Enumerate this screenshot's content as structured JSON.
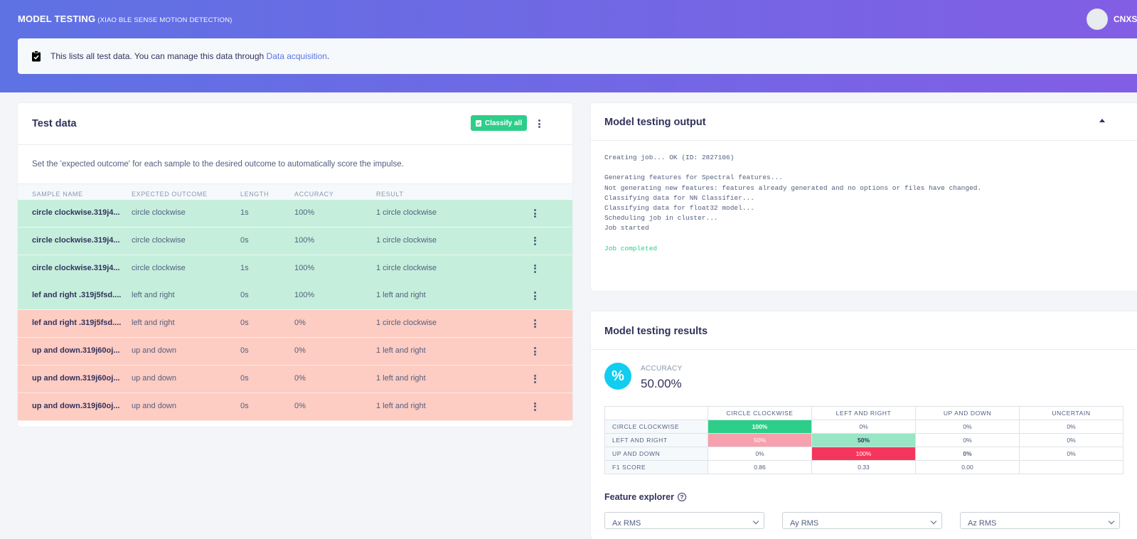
{
  "header": {
    "title": "MODEL TESTING",
    "subtitle": "(XIAO BLE SENSE MOTION DETECTION)",
    "user_name": "CNXSc"
  },
  "info": {
    "text": "This lists all test data. You can manage this data through ",
    "link": "Data acquisition",
    "suffix": "."
  },
  "test_data": {
    "title": "Test data",
    "classify_label": "Classify all",
    "description": "Set the 'expected outcome' for each sample to the desired outcome to automatically score the impulse.",
    "columns": [
      "SAMPLE NAME",
      "EXPECTED OUTCOME",
      "LENGTH",
      "ACCURACY",
      "RESULT"
    ],
    "rows": [
      {
        "name": "circle clockwise.319j4...",
        "expected": "circle clockwise",
        "length": "1s",
        "accuracy": "100%",
        "result": "1 circle clockwise",
        "status": "ok"
      },
      {
        "name": "circle clockwise.319j4...",
        "expected": "circle clockwise",
        "length": "0s",
        "accuracy": "100%",
        "result": "1 circle clockwise",
        "status": "ok"
      },
      {
        "name": "circle clockwise.319j4...",
        "expected": "circle clockwise",
        "length": "1s",
        "accuracy": "100%",
        "result": "1 circle clockwise",
        "status": "ok"
      },
      {
        "name": "lef and right .319j5fsd....",
        "expected": "left and right",
        "length": "0s",
        "accuracy": "100%",
        "result": "1 left and right",
        "status": "ok"
      },
      {
        "name": "lef and right .319j5fsd....",
        "expected": "left and right",
        "length": "0s",
        "accuracy": "0%",
        "result": "1 circle clockwise",
        "status": "bad"
      },
      {
        "name": "up and down.319j60oj...",
        "expected": "up and down",
        "length": "0s",
        "accuracy": "0%",
        "result": "1 left and right",
        "status": "bad"
      },
      {
        "name": "up and down.319j60oj...",
        "expected": "up and down",
        "length": "0s",
        "accuracy": "0%",
        "result": "1 left and right",
        "status": "bad"
      },
      {
        "name": "up and down.319j60oj...",
        "expected": "up and down",
        "length": "0s",
        "accuracy": "0%",
        "result": "1 left and right",
        "status": "bad"
      }
    ]
  },
  "output": {
    "title": "Model testing output",
    "lines": [
      {
        "text": "Creating job... OK (ID: 2827106)",
        "kind": "normal"
      },
      {
        "text": "",
        "kind": "normal"
      },
      {
        "text": "Generating features for Spectral features...",
        "kind": "normal"
      },
      {
        "text": "Not generating new features: features already generated and no options or files have changed.",
        "kind": "normal"
      },
      {
        "text": "Classifying data for NN Classifier...",
        "kind": "normal"
      },
      {
        "text": "Classifying data for float32 model...",
        "kind": "normal"
      },
      {
        "text": "Scheduling job in cluster...",
        "kind": "normal"
      },
      {
        "text": "Job started",
        "kind": "normal"
      },
      {
        "text": "",
        "kind": "normal"
      },
      {
        "text": "Job completed",
        "kind": "ok"
      }
    ]
  },
  "results": {
    "title": "Model testing results",
    "accuracy_icon": "%",
    "accuracy_label": "ACCURACY",
    "accuracy_value": "50.00%",
    "columns": [
      "CIRCLE CLOCKWISE",
      "LEFT AND RIGHT",
      "UP AND DOWN",
      "UNCERTAIN"
    ],
    "rows": [
      {
        "label": "CIRCLE CLOCKWISE",
        "cells": [
          "100%",
          "0%",
          "0%",
          "0%"
        ],
        "colors": [
          "#2dce89",
          "",
          "",
          ""
        ],
        "textcolors": [
          "#ffffff",
          "",
          "",
          ""
        ]
      },
      {
        "label": "LEFT AND RIGHT",
        "cells": [
          "50%",
          "50%",
          "0%",
          "0%"
        ],
        "colors": [
          "#f7a0ae",
          "#98e6c4",
          "",
          ""
        ],
        "textcolors": [
          "#ffffff",
          "#32325d",
          "",
          ""
        ]
      },
      {
        "label": "UP AND DOWN",
        "cells": [
          "0%",
          "100%",
          "0%",
          "0%"
        ],
        "colors": [
          "",
          "#f5365c",
          "",
          ""
        ],
        "textcolors": [
          "",
          "#ffffff",
          "",
          ""
        ]
      }
    ],
    "f1": {
      "label": "F1 SCORE",
      "cells": [
        "0.86",
        "0.33",
        "0.00",
        ""
      ]
    },
    "feature_explorer": "Feature explorer",
    "selects": [
      "Ax RMS",
      "Ay RMS",
      "Az RMS"
    ]
  }
}
